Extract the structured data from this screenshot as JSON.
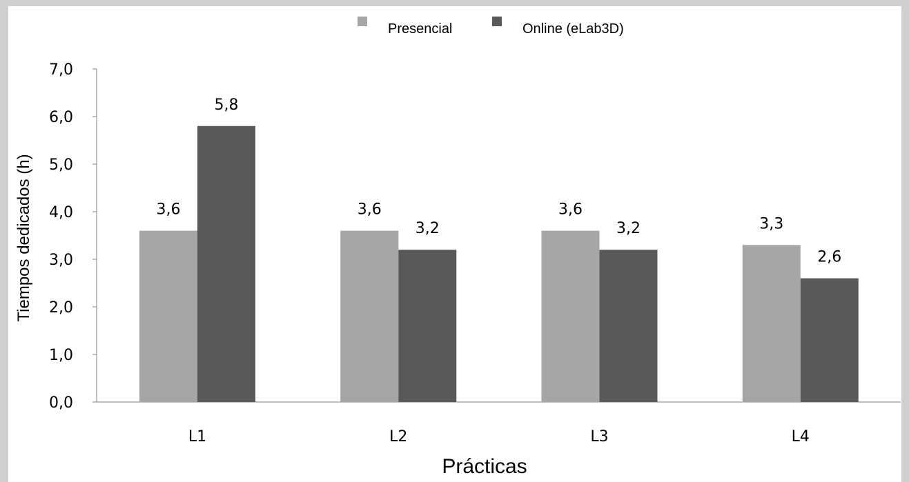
{
  "chart_data": {
    "type": "bar",
    "categories": [
      "L1",
      "L2",
      "L3",
      "L4"
    ],
    "series": [
      {
        "name": "Presencial",
        "values": [
          3.6,
          3.6,
          3.6,
          3.3
        ],
        "labels": [
          "3,6",
          "3,6",
          "3,6",
          "3,3"
        ],
        "color": "#a6a6a6"
      },
      {
        "name": "Online (eLab3D)",
        "values": [
          5.8,
          3.2,
          3.2,
          2.6
        ],
        "labels": [
          "5,8",
          "3,2",
          "3,2",
          "2,6"
        ],
        "color": "#595959"
      }
    ],
    "xlabel": "Prácticas",
    "ylabel": "Tiempos dedicados (h)",
    "ylim": [
      0,
      7
    ],
    "yticks": [
      0,
      1,
      2,
      3,
      4,
      5,
      6,
      7
    ],
    "ytick_labels": [
      "0,0",
      "1,0",
      "2,0",
      "3,0",
      "4,0",
      "5,0",
      "6,0",
      "7,0"
    ],
    "legend_position": "top-center",
    "grid": false
  },
  "colors": {
    "page_background": "#cfcfcf",
    "chart_background": "#ffffff",
    "axis": "#808080"
  }
}
